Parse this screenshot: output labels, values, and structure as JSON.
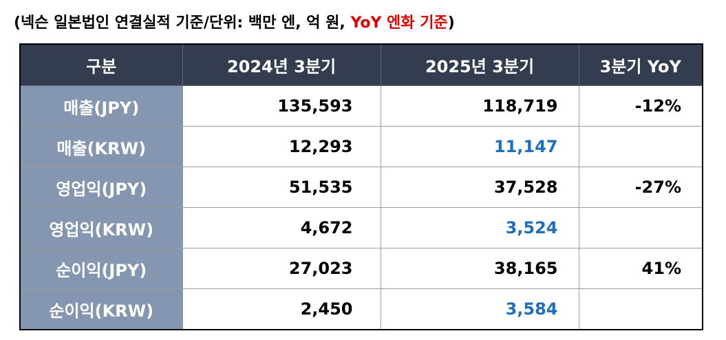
{
  "caption": {
    "text": "(넥슨 일본법인 연결실적 기준/단위: 백만 엔, 억 원, ",
    "highlight": "YoY 엔화 기준",
    "close": ")"
  },
  "table": {
    "headers": [
      "구분",
      "2024년 3분기",
      "2025년 3분기",
      "3분기 YoY"
    ],
    "rows": [
      {
        "label": "매출(JPY)",
        "q3_2024": "135,593",
        "q3_2025": "118,719",
        "yoy": "-12%"
      },
      {
        "label": "매출(KRW)",
        "q3_2024": "12,293",
        "q3_2025": "11,147",
        "yoy": ""
      },
      {
        "label": "영업익(JPY)",
        "q3_2024": "51,535",
        "q3_2025": "37,528",
        "yoy": "-27%"
      },
      {
        "label": "영업익(KRW)",
        "q3_2024": "4,672",
        "q3_2025": "3,524",
        "yoy": ""
      },
      {
        "label": "순이익(JPY)",
        "q3_2024": "27,023",
        "q3_2025": "38,165",
        "yoy": "41%"
      },
      {
        "label": "순이익(KRW)",
        "q3_2024": "2,450",
        "q3_2025": "3,584",
        "yoy": ""
      }
    ]
  },
  "colors": {
    "header_bg": "#333d4f",
    "label_bg": "#8496b0",
    "krw_value": "#1f6fc0",
    "highlight": "#e00000"
  }
}
